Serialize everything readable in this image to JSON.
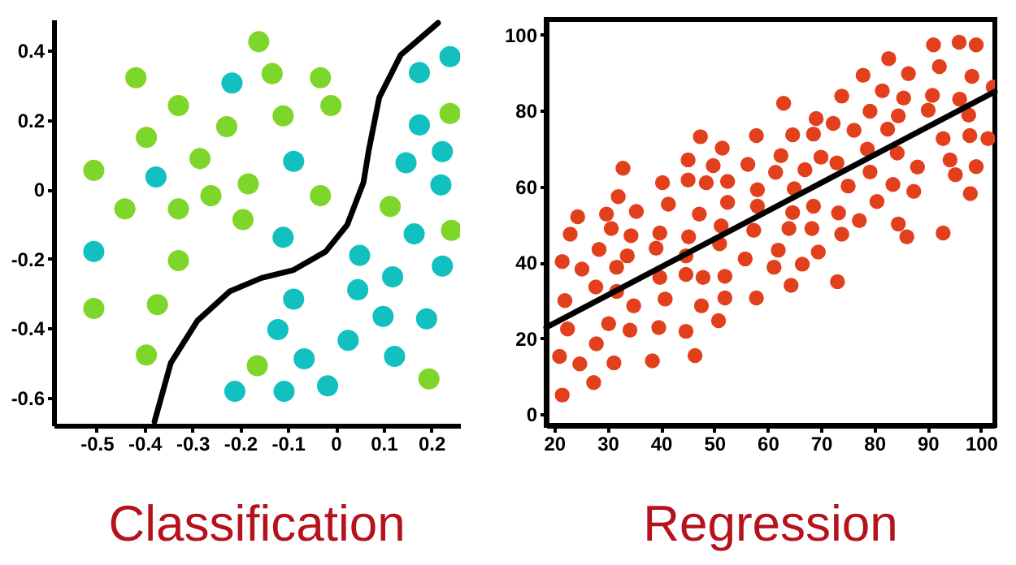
{
  "chart_data": [
    {
      "type": "scatter",
      "title": "Classification",
      "xlim": [
        -0.59,
        0.26
      ],
      "ylim": [
        -0.68,
        0.49
      ],
      "xticks": [
        -0.5,
        -0.4,
        -0.3,
        -0.2,
        -0.1,
        0,
        0.1,
        0.2
      ],
      "yticks": [
        -0.6,
        -0.4,
        -0.2,
        0,
        0.2,
        0.4
      ],
      "marker": "circle",
      "series": [
        {
          "color": "#7ed62a",
          "x": [
            -0.161,
            -0.418,
            -0.133,
            -0.032,
            -0.329,
            -0.01,
            -0.11,
            -0.228,
            -0.396,
            -0.284,
            -0.506,
            -0.183,
            -0.261,
            -0.032,
            -0.441,
            -0.329,
            -0.194,
            0.114,
            0.242,
            0.239,
            -0.329,
            -0.506,
            -0.373,
            -0.396,
            -0.164,
            0.195
          ],
          "values": [
            0.426,
            0.322,
            0.334,
            0.322,
            0.242,
            0.242,
            0.212,
            0.181,
            0.15,
            0.089,
            0.055,
            0.016,
            -0.018,
            -0.018,
            -0.056,
            -0.056,
            -0.087,
            -0.049,
            -0.118,
            0.219,
            -0.205,
            -0.343,
            -0.332,
            -0.477,
            -0.508,
            -0.546
          ]
        },
        {
          "color": "#12c0c0",
          "x": [
            -0.217,
            0.239,
            0.175,
            0.175,
            0.223,
            0.147,
            0.22,
            -0.088,
            -0.376,
            -0.506,
            -0.11,
            0.164,
            0.05,
            0.223,
            0.119,
            0.046,
            -0.088,
            0.099,
            0.19,
            -0.121,
            0.026,
            -0.066,
            0.123,
            -0.211,
            -0.108,
            -0.017
          ],
          "values": [
            0.307,
            0.383,
            0.337,
            0.186,
            0.109,
            0.077,
            0.013,
            0.081,
            0.036,
            -0.179,
            -0.138,
            -0.128,
            -0.19,
            -0.221,
            -0.252,
            -0.289,
            -0.316,
            -0.366,
            -0.373,
            -0.404,
            -0.435,
            -0.488,
            -0.481,
            -0.582,
            -0.582,
            -0.566
          ]
        },
        {
          "type": "line",
          "marker": "none",
          "color": "#000000",
          "x": [
            -0.379,
            -0.345,
            -0.289,
            -0.222,
            -0.155,
            -0.088,
            -0.021,
            0.024,
            0.058,
            0.069,
            0.091,
            0.136,
            0.214
          ],
          "values": [
            -0.669,
            -0.5,
            -0.378,
            -0.294,
            -0.255,
            -0.232,
            -0.179,
            -0.102,
            0.02,
            0.112,
            0.265,
            0.388,
            0.48
          ]
        }
      ]
    },
    {
      "type": "scatter",
      "title": "Regression",
      "xlim": [
        18.5,
        102.6
      ],
      "ylim": [
        -3,
        104
      ],
      "xticks": [
        20,
        30,
        40,
        50,
        60,
        70,
        80,
        90,
        100
      ],
      "yticks": [
        0,
        20,
        40,
        60,
        80,
        100
      ],
      "marker": "circle",
      "series": [
        {
          "color": "#e2401c",
          "x": [
            21.0,
            21.5,
            21.5,
            22.0,
            22.5,
            23.0,
            24.4,
            24.8,
            25.2,
            27.4,
            27.8,
            27.9,
            28.4,
            29.8,
            30.2,
            30.7,
            31.2,
            31.7,
            31.7,
            32.0,
            32.9,
            33.7,
            34.4,
            34.9,
            34.2,
            35.4,
            38.4,
            39.1,
            39.8,
            39.8,
            39.6,
            40.3,
            40.8,
            41.4,
            44.7,
            44.7,
            44.7,
            45.1,
            45.1,
            45.2,
            46.4,
            47.2,
            47.4,
            47.6,
            47.9,
            48.5,
            49.8,
            50.8,
            51.0,
            51.3,
            51.5,
            52.0,
            52.0,
            52.5,
            52.5,
            55.8,
            56.3,
            57.4,
            57.9,
            58.1,
            58.1,
            57.9,
            61.2,
            61.5,
            62.0,
            62.5,
            63.0,
            64.0,
            64.4,
            64.7,
            64.7,
            65.0,
            66.5,
            67.0,
            68.6,
            68.3,
            68.6,
            69.1,
            69.5,
            70.0,
            72.3,
            73.0,
            73.1,
            73.3,
            73.9,
            73.9,
            75.1,
            76.2,
            77.2,
            77.9,
            78.7,
            79.2,
            79.2,
            80.5,
            81.5,
            82.5,
            82.7,
            83.5,
            84.3,
            84.5,
            84.5,
            85.5,
            86.1,
            86.4,
            88.1,
            87.4,
            90.1,
            90.9,
            91.1,
            92.2,
            92.9,
            92.9,
            94.2,
            95.2,
            95.9,
            96.0,
            97.7,
            97.9,
            98.0,
            98.3,
            99.1,
            99.1,
            101.3,
            102.3
          ],
          "values": [
            15.2,
            5.0,
            40.2,
            29.9,
            22.4,
            47.4,
            52.0,
            13.2,
            38.2,
            8.3,
            33.5,
            18.5,
            43.4,
            52.7,
            23.8,
            48.9,
            13.5,
            38.7,
            32.3,
            57.3,
            64.8,
            41.7,
            47.0,
            28.5,
            22.1,
            53.4,
            14.0,
            43.7,
            47.7,
            36.0,
            22.8,
            61.0,
            30.3,
            55.3,
            21.8,
            36.8,
            41.7,
            67.0,
            61.7,
            46.7,
            15.4,
            52.7,
            73.1,
            28.5,
            36.0,
            61.0,
            65.5,
            24.6,
            44.9,
            49.6,
            70.1,
            36.3,
            30.6,
            61.3,
            55.8,
            40.9,
            65.8,
            48.4,
            73.4,
            59.1,
            54.8,
            30.6,
            38.7,
            63.7,
            43.2,
            68.1,
            81.9,
            48.9,
            33.9,
            53.1,
            73.6,
            59.4,
            39.5,
            64.4,
            54.8,
            48.9,
            73.8,
            77.9,
            42.7,
            67.7,
            76.6,
            66.2,
            34.9,
            53.0,
            47.4,
            83.8,
            60.1,
            74.8,
            51.0,
            89.3,
            69.8,
            79.8,
            63.8,
            56.0,
            85.2,
            75.1,
            93.7,
            60.5,
            68.8,
            78.6,
            50.1,
            83.3,
            46.7,
            89.7,
            65.1,
            58.7,
            80.1,
            84.0,
            97.3,
            91.6,
            72.6,
            47.7,
            67.0,
            63.1,
            98.0,
            83.0,
            78.8,
            73.4,
            58.1,
            89.0,
            97.3,
            65.2,
            72.6,
            86.2
          ]
        },
        {
          "type": "line",
          "marker": "none",
          "color": "#000000",
          "x": [
            18.5,
            102.6
          ],
          "values": [
            22.8,
            85.0
          ]
        }
      ]
    }
  ]
}
